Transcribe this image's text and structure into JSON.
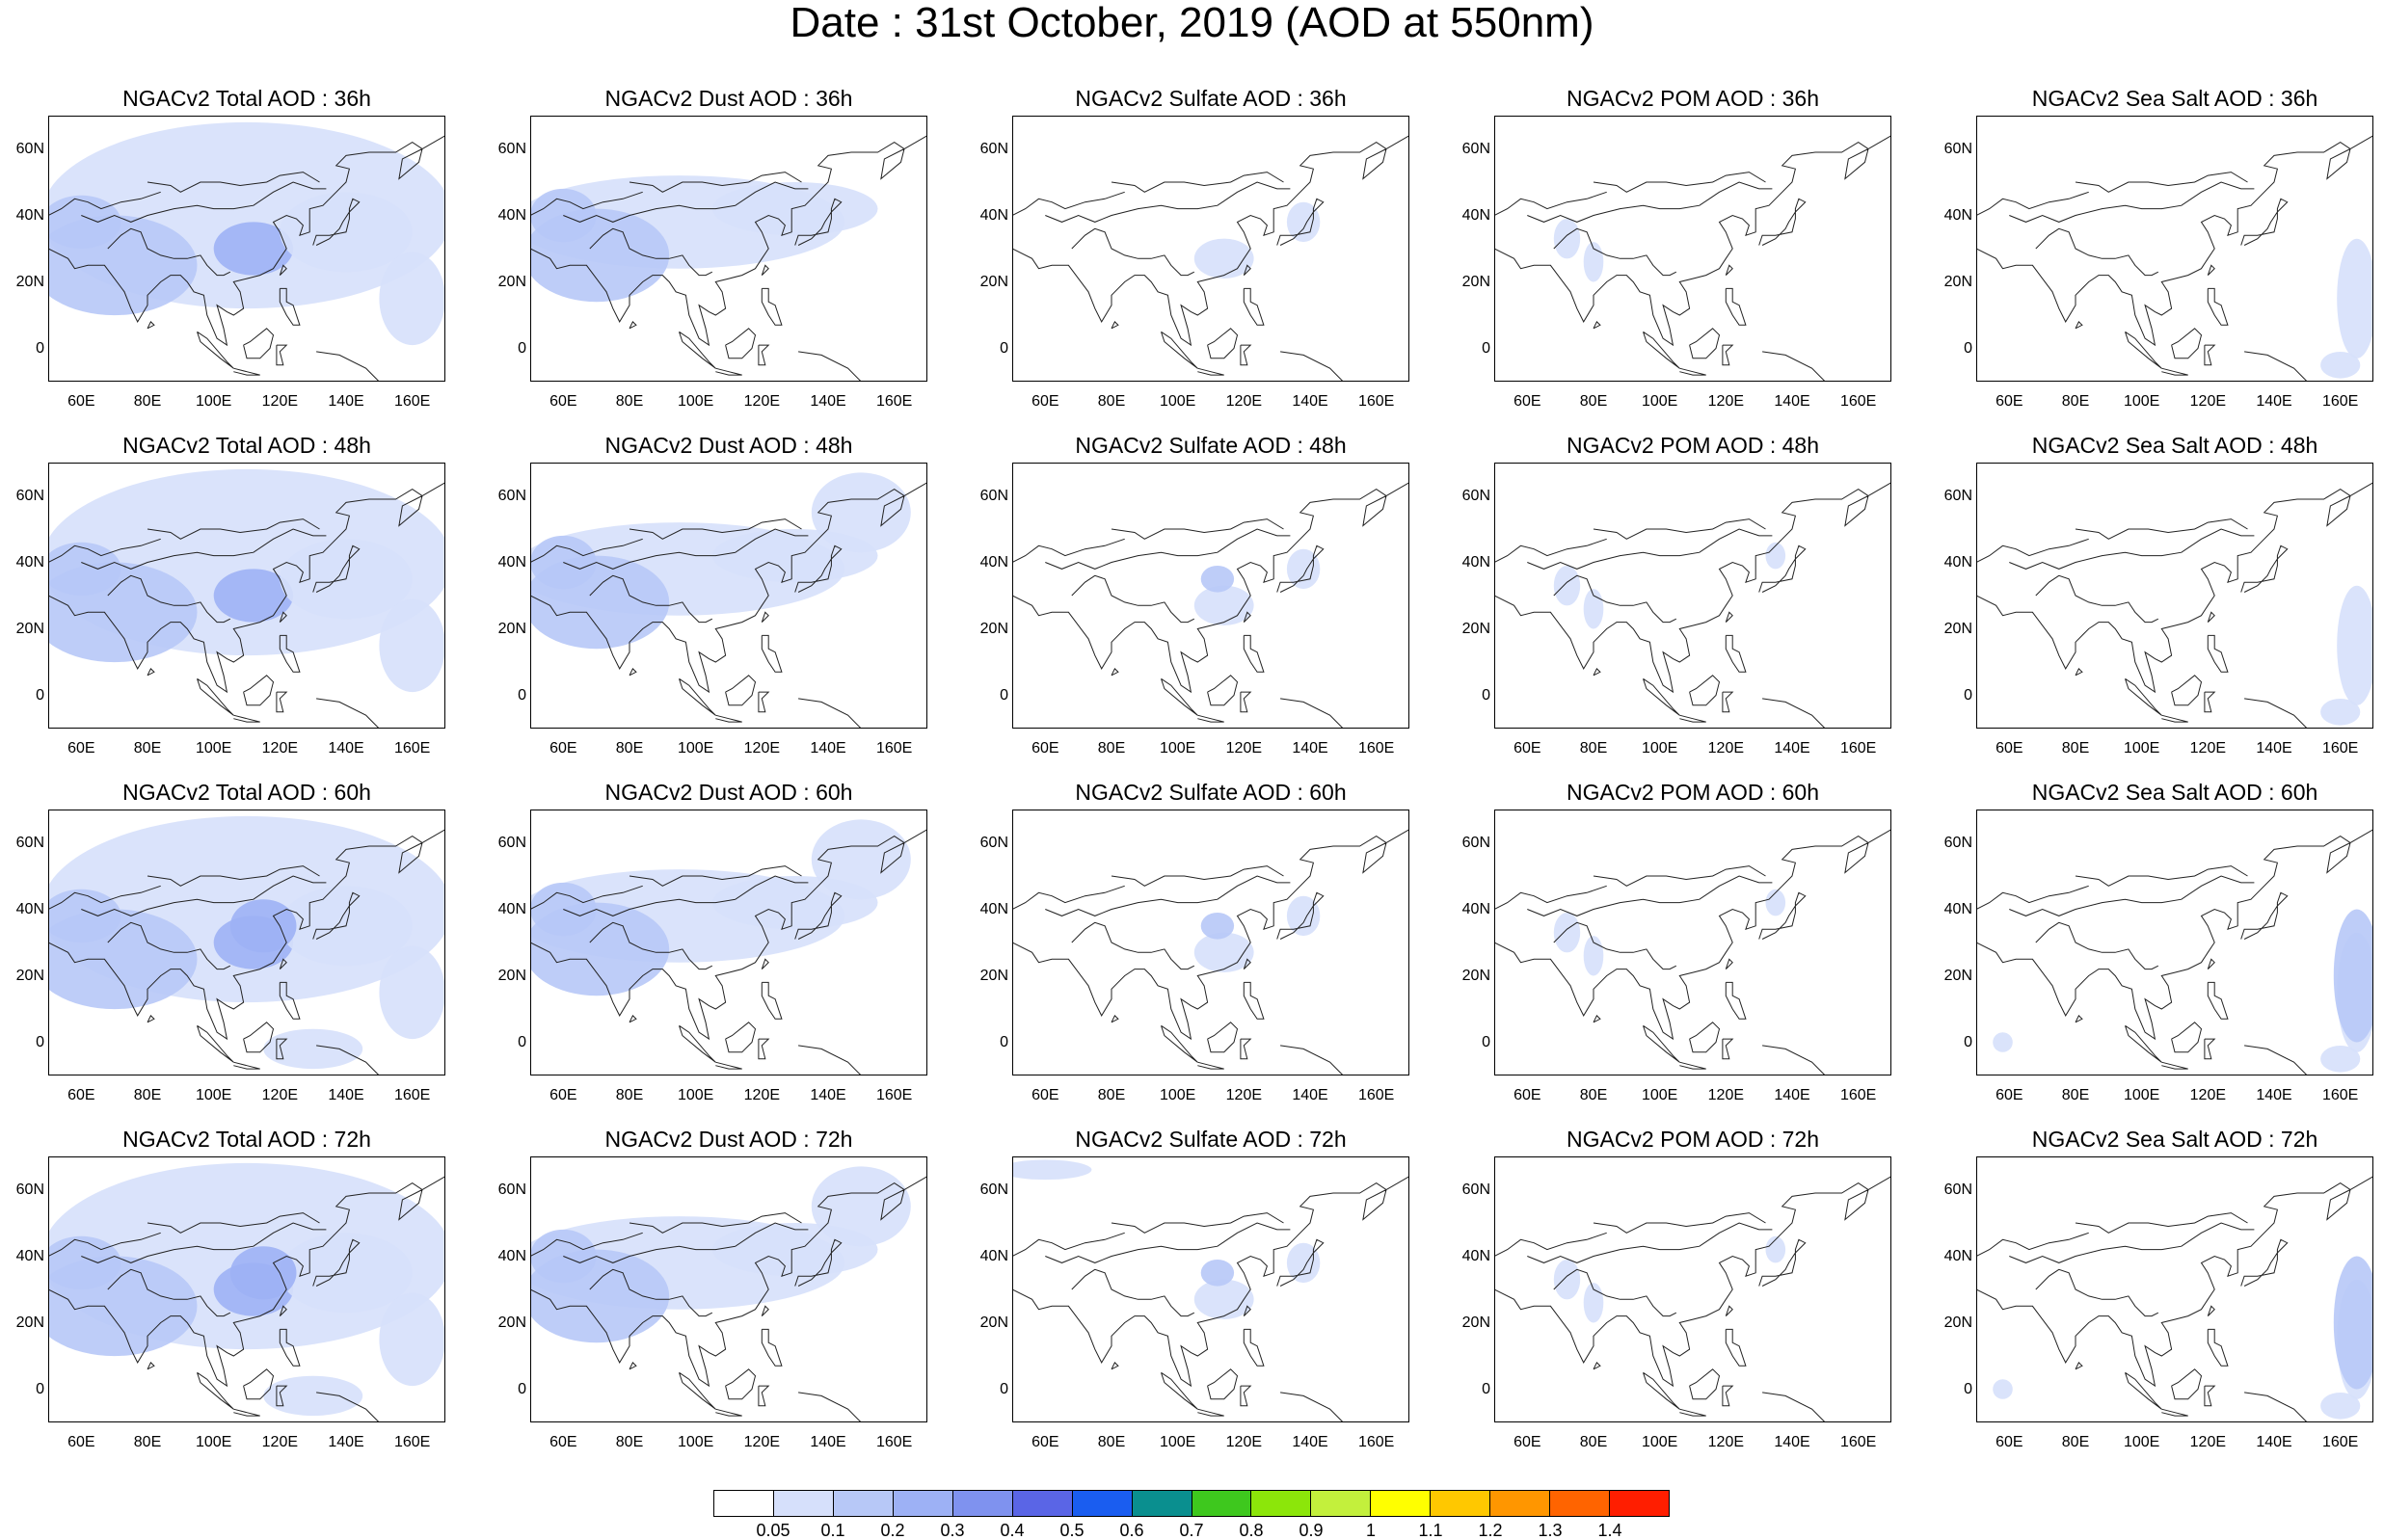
{
  "title": "Date : 31st October, 2019 (AOD at 550nm)",
  "panels": [
    [
      "NGACv2 Total AOD : 36h",
      "NGACv2 Dust AOD : 36h",
      "NGACv2 Sulfate AOD : 36h",
      "NGACv2 POM AOD : 36h",
      "NGACv2 Sea Salt AOD : 36h"
    ],
    [
      "NGACv2 Total AOD : 48h",
      "NGACv2 Dust AOD : 48h",
      "NGACv2 Sulfate AOD : 48h",
      "NGACv2 POM AOD : 48h",
      "NGACv2 Sea Salt AOD : 48h"
    ],
    [
      "NGACv2 Total AOD : 60h",
      "NGACv2 Dust AOD : 60h",
      "NGACv2 Sulfate AOD : 60h",
      "NGACv2 POM AOD : 60h",
      "NGACv2 Sea Salt AOD : 60h"
    ],
    [
      "NGACv2 Total AOD : 72h",
      "NGACv2 Dust AOD : 72h",
      "NGACv2 Sulfate AOD : 72h",
      "NGACv2 POM AOD : 72h",
      "NGACv2 Sea Salt  AOD : 72h"
    ]
  ],
  "lat_ticks": [
    "60N",
    "40N",
    "20N",
    "0"
  ],
  "lon_ticks": [
    "60E",
    "80E",
    "100E",
    "120E",
    "140E",
    "160E"
  ],
  "colorbar": {
    "labels": [
      "0.05",
      "0.1",
      "0.2",
      "0.3",
      "0.4",
      "0.5",
      "0.6",
      "0.7",
      "0.8",
      "0.9",
      "1",
      "1.1",
      "1.2",
      "1.3",
      "1.4"
    ],
    "colors": [
      "#ffffff",
      "#d6e0fb",
      "#b7c8f7",
      "#9db1f5",
      "#7f92ef",
      "#5a65e6",
      "#1a5df0",
      "#0a8f8f",
      "#3ec81e",
      "#8ce60a",
      "#c3f03c",
      "#ffff00",
      "#ffc800",
      "#ff9600",
      "#ff6400",
      "#ff1e00"
    ]
  }
}
